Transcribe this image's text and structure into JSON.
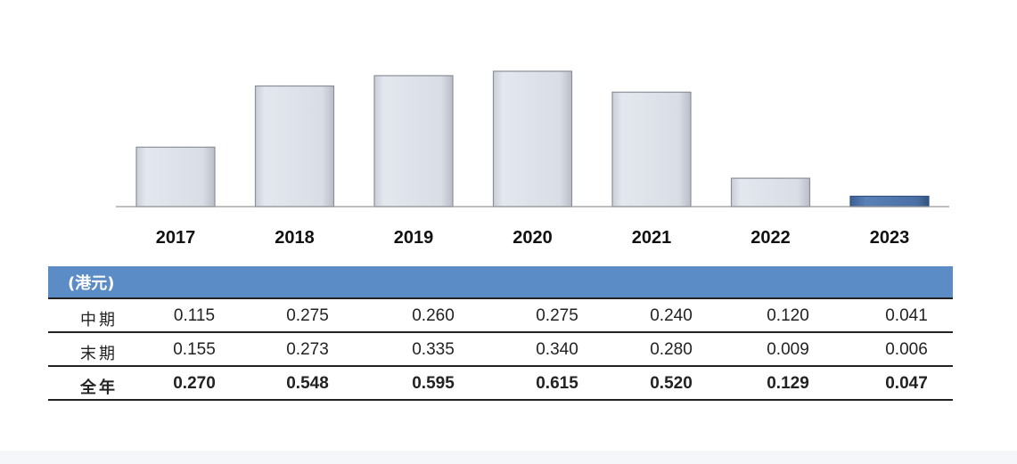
{
  "chart_data": {
    "type": "bar",
    "categories": [
      "2017",
      "2018",
      "2019",
      "2020",
      "2021",
      "2022",
      "2023"
    ],
    "values": [
      0.27,
      0.548,
      0.595,
      0.615,
      0.52,
      0.129,
      0.047
    ],
    "ylim": [
      0,
      0.615
    ],
    "grid": false,
    "title": "",
    "xlabel": "",
    "ylabel": "",
    "colors": {
      "bar": "#d8dde6",
      "bar_border": "#8a8f98",
      "highlight_bar": "#4a6fa5",
      "highlight_bar_border": "#2d4f80",
      "axis": "#999999"
    },
    "highlight_category": "2023"
  },
  "table": {
    "unit_label": "(港元)",
    "header_color": "#5b8cc6",
    "rows": [
      {
        "label": "中期",
        "values": [
          "0.115",
          "0.275",
          "0.260",
          "0.275",
          "0.240",
          "0.120",
          "0.041"
        ]
      },
      {
        "label": "末期",
        "values": [
          "0.155",
          "0.273",
          "0.335",
          "0.340",
          "0.280",
          "0.009",
          "0.006"
        ]
      },
      {
        "label": "全年",
        "values": [
          "0.270",
          "0.548",
          "0.595",
          "0.615",
          "0.520",
          "0.129",
          "0.047"
        ],
        "bold": true
      }
    ]
  }
}
